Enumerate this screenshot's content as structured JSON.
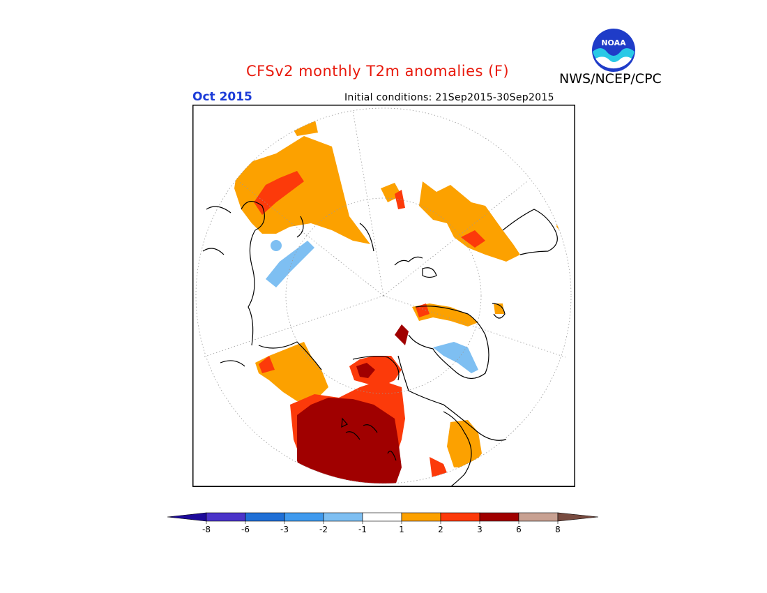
{
  "header": {
    "title": "CFSv2 monthly T2m anomalies (F)",
    "agency": "NWS/NCEP/CPC",
    "month": "Oct 2015",
    "initial_conditions": "Initial conditions: 21Sep2015-30Sep2015",
    "logo_text": "NOAA"
  },
  "colors": {
    "title": "#e8190c",
    "month": "#1c3cd8",
    "land_outline": "#000000",
    "frame": "#000000"
  },
  "map": {
    "projection": "north-polar-stereographic",
    "regions": [
      {
        "name": "western-north-america-anomaly",
        "level": 6
      },
      {
        "name": "canada-anomaly",
        "level": 3
      },
      {
        "name": "alaska-anomaly",
        "level": 2
      },
      {
        "name": "siberia-anomaly",
        "level": 2
      },
      {
        "name": "europe-anomaly",
        "level": 2
      },
      {
        "name": "central-asia-cool-anomaly",
        "level": -1
      },
      {
        "name": "greenland-cool-anomaly",
        "level": -1
      }
    ]
  },
  "colorbar": {
    "labels": [
      "-8",
      "-6",
      "-3",
      "-2",
      "-1",
      "1",
      "2",
      "3",
      "6",
      "8"
    ],
    "colors": [
      "#1d0a9a",
      "#4a33c9",
      "#1f6fd6",
      "#3f9aee",
      "#7ebff2",
      "#ffffff",
      "#fca100",
      "#fc3a0a",
      "#a00000",
      "#c8a192",
      "#784b40"
    ]
  }
}
